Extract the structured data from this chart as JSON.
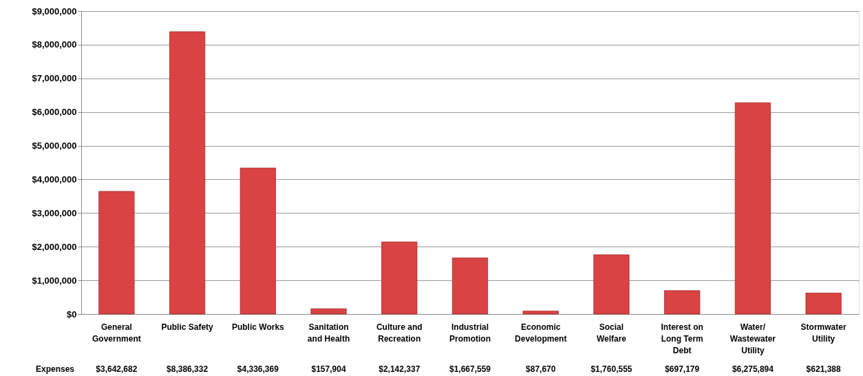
{
  "chart_data": {
    "type": "bar",
    "categories": [
      "General Government",
      "Public Safety",
      "Public Works",
      "Sanitation and Health",
      "Culture and Recreation",
      "Industrial Promotion",
      "Economic Development",
      "Social Welfare",
      "Interest on Long Term Debt",
      "Water/ Wastewater Utility",
      "Stormwater Utility"
    ],
    "series": [
      {
        "name": "Expenses",
        "color": "#d94343",
        "values": [
          3642682,
          8386332,
          4336369,
          157904,
          2142337,
          1667559,
          87670,
          1760555,
          697179,
          6275894,
          621388
        ],
        "value_labels": [
          "$3,642,682",
          "$8,386,332",
          "$4,336,369",
          "$157,904",
          "$2,142,337",
          "$1,667,559",
          "$87,670",
          "$1,760,555",
          "$697,179",
          "$6,275,894",
          "$621,388"
        ]
      }
    ],
    "ylim": [
      0,
      9000000
    ],
    "yticks": [
      {
        "value": 0,
        "label": "$0"
      },
      {
        "value": 1000000,
        "label": "$1,000,000"
      },
      {
        "value": 2000000,
        "label": "$2,000,000"
      },
      {
        "value": 3000000,
        "label": "$3,000,000"
      },
      {
        "value": 4000000,
        "label": "$4,000,000"
      },
      {
        "value": 5000000,
        "label": "$5,000,000"
      },
      {
        "value": 6000000,
        "label": "$6,000,000"
      },
      {
        "value": 7000000,
        "label": "$7,000,000"
      },
      {
        "value": 8000000,
        "label": "$8,000,000"
      },
      {
        "value": 9000000,
        "label": "$9,000,000"
      }
    ],
    "grid": "y"
  }
}
